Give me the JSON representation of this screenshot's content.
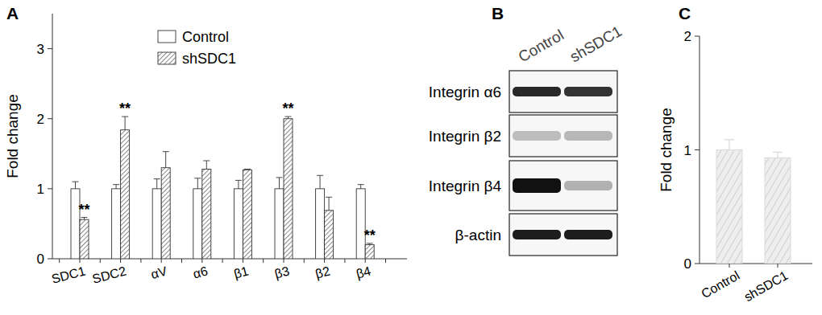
{
  "chart_data": [
    {
      "type": "bar",
      "title": "A",
      "y_label": "Fold change",
      "categories": [
        "SDC1",
        "SDC2",
        "αV",
        "α6",
        "β1",
        "β3",
        "β2",
        "β4"
      ],
      "series": [
        {
          "name": "Control",
          "color": "#ffffff",
          "values": [
            1,
            1,
            1,
            1,
            1,
            1,
            1,
            1
          ],
          "errors": [
            0.1,
            0.06,
            0.14,
            0.15,
            0.12,
            0.16,
            0.19,
            0.06
          ]
        },
        {
          "name": "shSDC1",
          "color": "#ffffff",
          "values": [
            0.56,
            1.84,
            1.3,
            1.28,
            1.27,
            2.0,
            0.69,
            0.2
          ],
          "errors": [
            0.03,
            0.19,
            0.23,
            0.12,
            0.01,
            0.03,
            0.19,
            0.02
          ]
        }
      ],
      "annotations": [
        {
          "text": "**",
          "category": 0,
          "series": 1
        },
        {
          "text": "**",
          "category": 1,
          "series": 1
        },
        {
          "text": "**",
          "category": 5,
          "series": 1
        },
        {
          "text": "**",
          "category": 7,
          "series": 1
        }
      ],
      "ylim": [
        0,
        3.5
      ],
      "yticks": [
        0,
        1,
        2,
        3
      ],
      "legend": "upper center"
    },
    {
      "type": "bar",
      "title": "C",
      "y_label": "Fold change",
      "categories": [
        "Control",
        "shSDC1"
      ],
      "values": [
        1.0,
        0.93
      ],
      "errors": [
        0.09,
        0.05
      ],
      "color": "#d9d9d9",
      "ylim": [
        0,
        2
      ],
      "yticks": [
        0,
        1,
        2
      ]
    }
  ],
  "blot": {
    "title": "B",
    "lanes": [
      "Control",
      "shSDC1"
    ],
    "rows": [
      {
        "name": "Integrin α6",
        "bands": [
          0.9,
          0.85
        ]
      },
      {
        "name": "Integrin β2",
        "bands": [
          0.25,
          0.28
        ]
      },
      {
        "name": "Integrin β4",
        "bands": [
          1.0,
          0.3
        ]
      },
      {
        "name": "β-actin",
        "bands": [
          0.95,
          0.95
        ]
      }
    ]
  }
}
